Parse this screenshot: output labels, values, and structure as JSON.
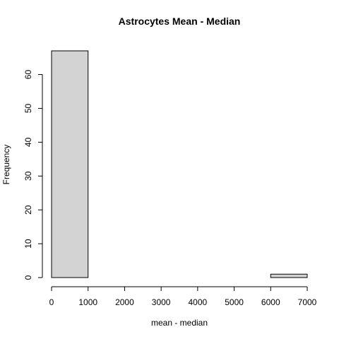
{
  "chart_data": {
    "type": "bar",
    "title": "Astrocytes Mean - Median",
    "xlabel": "mean - median",
    "ylabel": "Frequency",
    "bins": [
      {
        "start": 0,
        "end": 1000,
        "count": 67
      },
      {
        "start": 1000,
        "end": 2000,
        "count": 0
      },
      {
        "start": 2000,
        "end": 3000,
        "count": 0
      },
      {
        "start": 3000,
        "end": 4000,
        "count": 0
      },
      {
        "start": 4000,
        "end": 5000,
        "count": 0
      },
      {
        "start": 5000,
        "end": 6000,
        "count": 0
      },
      {
        "start": 6000,
        "end": 7000,
        "count": 1
      }
    ],
    "xticks": [
      0,
      1000,
      2000,
      3000,
      4000,
      5000,
      6000,
      7000
    ],
    "yticks": [
      0,
      10,
      20,
      30,
      40,
      50,
      60
    ],
    "xlim": [
      0,
      7000
    ],
    "ylim": [
      0,
      67
    ],
    "grid": false,
    "colors": {
      "bar_fill": "#d3d3d3",
      "bar_stroke": "#000000"
    }
  }
}
